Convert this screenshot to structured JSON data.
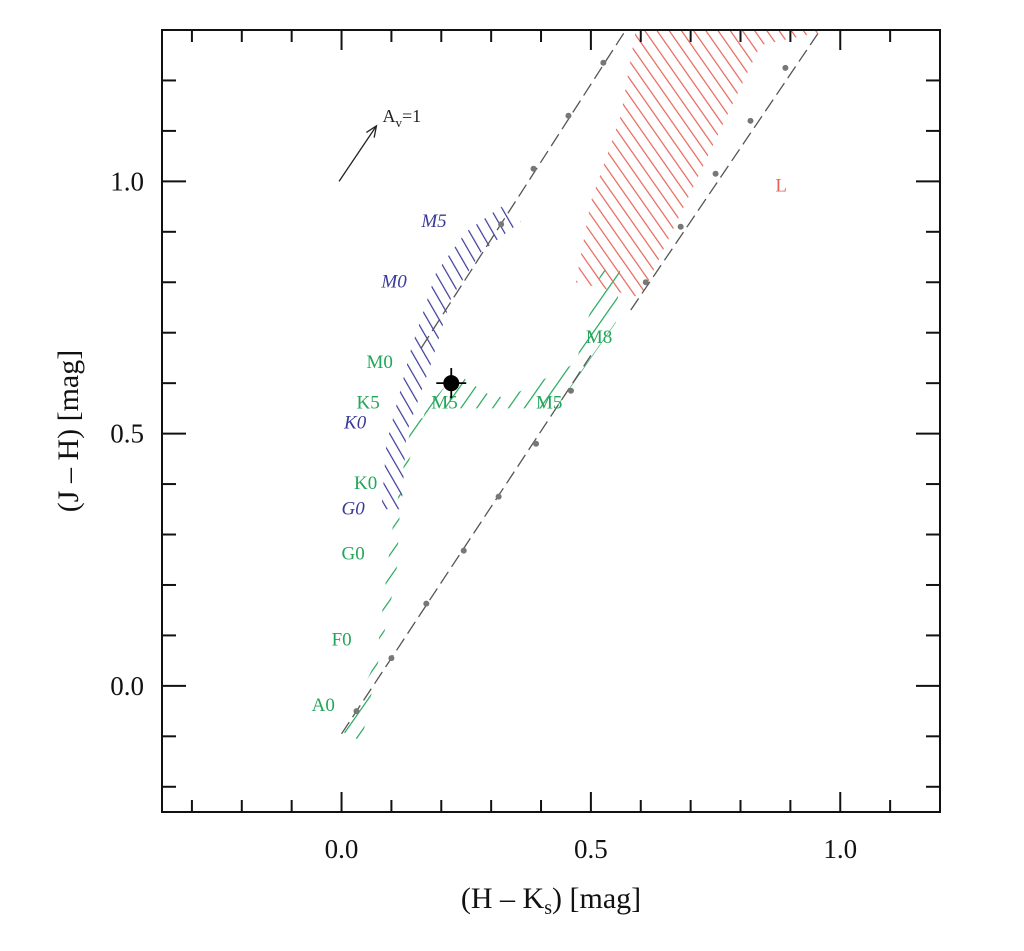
{
  "chart_data": {
    "type": "scatter",
    "xlabel": "(H – K",
    "xlabel_sub": "s",
    "xlabel_tail": ") [mag]",
    "ylabel": "(J – H) [mag]",
    "xlim": [
      -0.36,
      1.2
    ],
    "ylim": [
      -0.25,
      1.3
    ],
    "x_ticks": [
      0.0,
      0.5,
      1.0
    ],
    "x_tick_labels": [
      "0.0",
      "0.5",
      "1.0"
    ],
    "y_ticks": [
      0.0,
      0.5,
      1.0
    ],
    "y_tick_labels": [
      "0.0",
      "0.5",
      "1.0"
    ],
    "x_minor_step": 0.1,
    "y_minor_step": 0.1,
    "grid": false,
    "colors": {
      "dwarf": "#22a65a",
      "giant": "#3a3a9a",
      "brown_dwarf": "#e8645a",
      "reddening": "#555555",
      "point": "#000000"
    },
    "reddening_line": {
      "style": "dashed",
      "points": [
        {
          "x": 0.03,
          "y": -0.05
        },
        {
          "x": 0.1,
          "y": 0.055
        },
        {
          "x": 0.17,
          "y": 0.163
        },
        {
          "x": 0.245,
          "y": 0.268
        },
        {
          "x": 0.315,
          "y": 0.375
        },
        {
          "x": 0.39,
          "y": 0.48
        },
        {
          "x": 0.46,
          "y": 0.585
        },
        {
          "x": 0.32,
          "y": 0.915
        },
        {
          "x": 0.385,
          "y": 1.025
        },
        {
          "x": 0.455,
          "y": 1.13
        },
        {
          "x": 0.525,
          "y": 1.235
        },
        {
          "x": 0.61,
          "y": 0.8
        },
        {
          "x": 0.68,
          "y": 0.91
        },
        {
          "x": 0.75,
          "y": 1.015
        },
        {
          "x": 0.82,
          "y": 1.12
        },
        {
          "x": 0.89,
          "y": 1.225
        }
      ]
    },
    "extinction_vector": {
      "label": "A",
      "label_sub": "v",
      "label_tail": "=1",
      "from": {
        "x": -0.005,
        "y": 1.0
      },
      "to": {
        "x": 0.07,
        "y": 1.11
      }
    },
    "regions": [
      {
        "name": "dwarfs",
        "color": "#22a65a",
        "polygon": [
          [
            0.0,
            -0.09
          ],
          [
            0.04,
            -0.11
          ],
          [
            0.11,
            0.22
          ],
          [
            0.12,
            0.4
          ],
          [
            0.17,
            0.55
          ],
          [
            0.23,
            0.62
          ],
          [
            0.29,
            0.58
          ],
          [
            0.33,
            0.57
          ],
          [
            0.47,
            0.64
          ],
          [
            0.52,
            0.82
          ],
          [
            0.56,
            0.84
          ],
          [
            0.55,
            0.72
          ],
          [
            0.43,
            0.55
          ],
          [
            0.2,
            0.55
          ],
          [
            0.14,
            0.52
          ],
          [
            0.1,
            0.3
          ],
          [
            0.07,
            0.05
          ]
        ]
      },
      {
        "name": "giants",
        "color": "#3a3a9a",
        "polygon": [
          [
            0.08,
            0.35
          ],
          [
            0.12,
            0.35
          ],
          [
            0.13,
            0.5
          ],
          [
            0.18,
            0.64
          ],
          [
            0.22,
            0.77
          ],
          [
            0.28,
            0.86
          ],
          [
            0.36,
            0.92
          ],
          [
            0.32,
            0.95
          ],
          [
            0.25,
            0.9
          ],
          [
            0.19,
            0.82
          ],
          [
            0.14,
            0.67
          ],
          [
            0.09,
            0.48
          ]
        ]
      },
      {
        "name": "brown-dwarfs",
        "color": "#e8645a",
        "polygon": [
          [
            0.47,
            0.8
          ],
          [
            0.5,
            0.96
          ],
          [
            0.56,
            1.13
          ],
          [
            0.59,
            1.3
          ],
          [
            0.98,
            1.3
          ],
          [
            0.84,
            1.27
          ],
          [
            0.6,
            0.77
          ]
        ]
      }
    ],
    "data_point": {
      "x": 0.22,
      "y": 0.6,
      "xerr": 0.03,
      "yerr": 0.03
    },
    "annotations": [
      {
        "text": "A0",
        "x": -0.06,
        "y": -0.05,
        "group": "dwarf",
        "italic": false
      },
      {
        "text": "F0",
        "x": -0.02,
        "y": 0.08,
        "group": "dwarf",
        "italic": false
      },
      {
        "text": "G0",
        "x": 0.0,
        "y": 0.25,
        "group": "dwarf",
        "italic": false
      },
      {
        "text": "G0",
        "x": 0.0,
        "y": 0.34,
        "group": "giant",
        "italic": true
      },
      {
        "text": "K0",
        "x": 0.025,
        "y": 0.39,
        "group": "dwarf",
        "italic": false
      },
      {
        "text": "K0",
        "x": 0.005,
        "y": 0.51,
        "group": "giant",
        "italic": true
      },
      {
        "text": "K5",
        "x": 0.03,
        "y": 0.55,
        "group": "dwarf",
        "italic": false
      },
      {
        "text": "M0",
        "x": 0.05,
        "y": 0.63,
        "group": "dwarf",
        "italic": false
      },
      {
        "text": "M5",
        "x": 0.18,
        "y": 0.55,
        "group": "dwarf",
        "italic": false
      },
      {
        "text": "M5",
        "x": 0.39,
        "y": 0.55,
        "group": "dwarf",
        "italic": false
      },
      {
        "text": "M8",
        "x": 0.49,
        "y": 0.68,
        "group": "dwarf",
        "italic": false
      },
      {
        "text": "M0",
        "x": 0.08,
        "y": 0.79,
        "group": "giant",
        "italic": true
      },
      {
        "text": "M5",
        "x": 0.16,
        "y": 0.91,
        "group": "giant",
        "italic": true
      },
      {
        "text": "L",
        "x": 0.87,
        "y": 0.98,
        "group": "brown_dwarf",
        "italic": false
      }
    ]
  }
}
